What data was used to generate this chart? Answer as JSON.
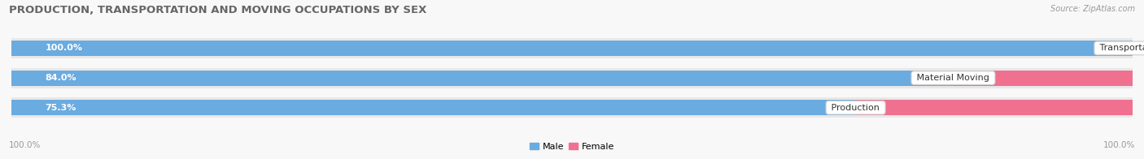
{
  "title": "PRODUCTION, TRANSPORTATION AND MOVING OCCUPATIONS BY SEX",
  "source": "Source: ZipAtlas.com",
  "categories": [
    "Transportation",
    "Material Moving",
    "Production"
  ],
  "male_pct": [
    100.0,
    84.0,
    75.3
  ],
  "female_pct": [
    0.0,
    16.0,
    24.7
  ],
  "male_color": "#6aabe0",
  "female_color": "#f07090",
  "row_bg_color": "#e8e8e8",
  "fig_bg_color": "#f8f8f8",
  "male_label_color": "#ffffff",
  "female_label_color": "#666666",
  "cat_label_color": "#333333",
  "axis_tick_color": "#999999",
  "title_color": "#666666",
  "source_color": "#999999",
  "axis_label_left": "100.0%",
  "axis_label_right": "100.0%",
  "legend_male": "Male",
  "legend_female": "Female",
  "title_fontsize": 9.5,
  "label_fontsize": 8,
  "cat_fontsize": 8,
  "figsize": [
    14.06,
    1.96
  ],
  "dpi": 100
}
